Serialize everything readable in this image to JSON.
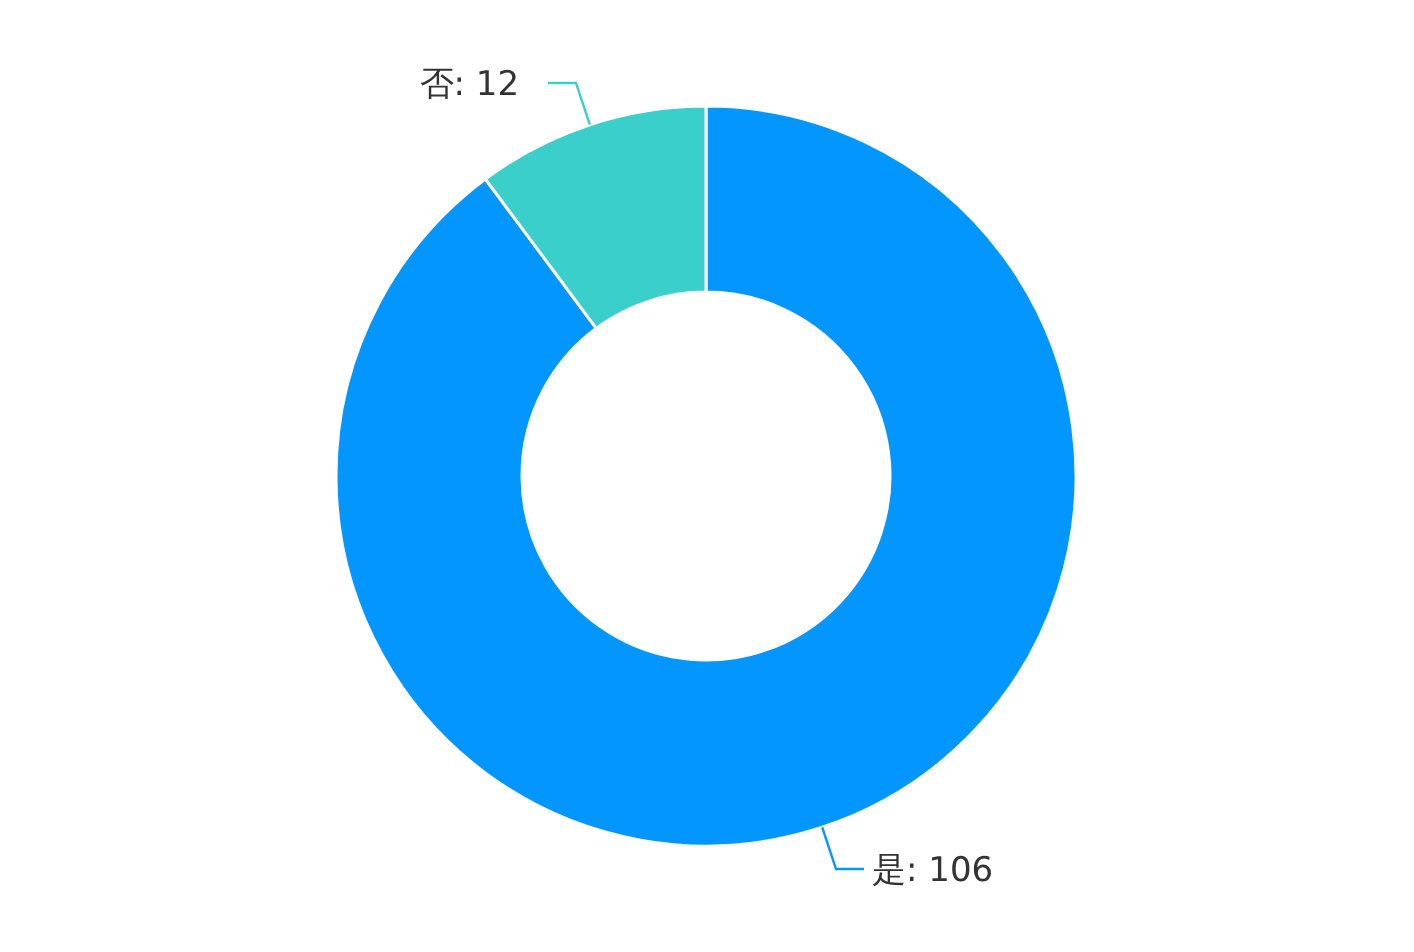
{
  "chart_data": {
    "type": "donut",
    "categories": [
      "是",
      "否"
    ],
    "values": [
      106,
      12
    ],
    "colors": [
      "#0396ff",
      "#3acfca"
    ],
    "value_labels": [
      ": 106",
      ": 12"
    ],
    "legend": false
  }
}
